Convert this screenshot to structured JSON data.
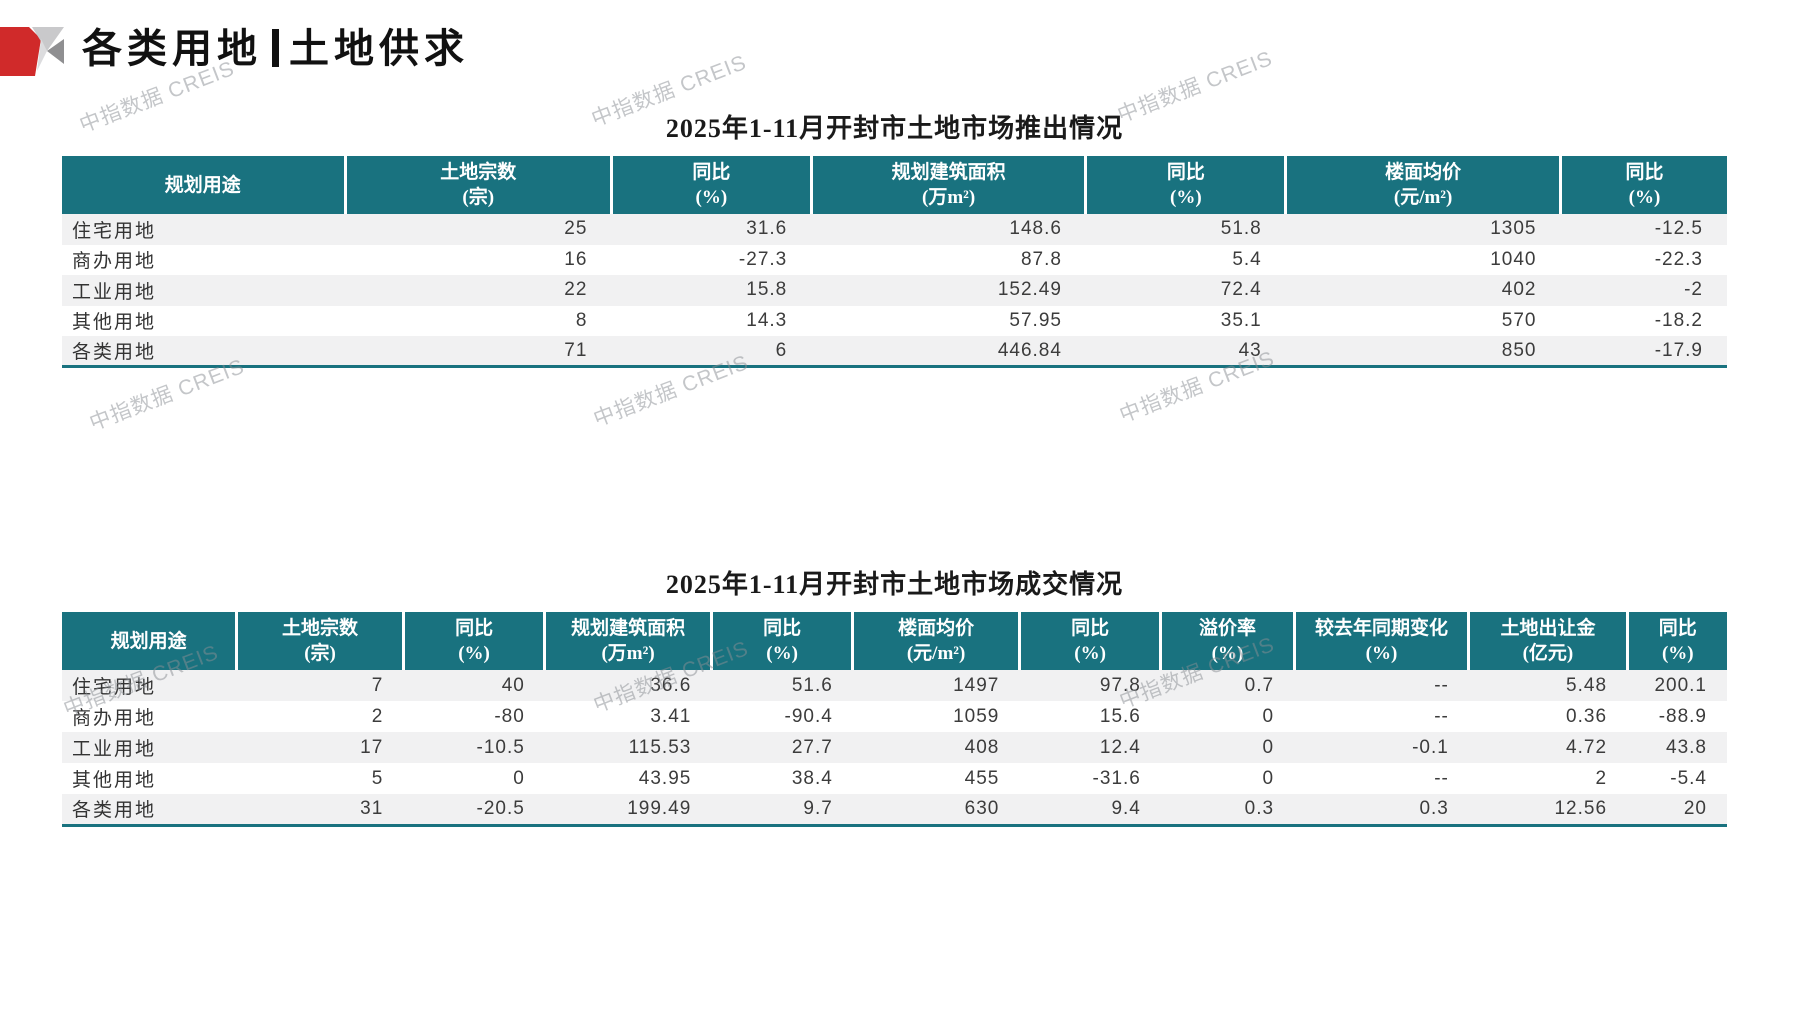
{
  "page": {
    "title_left": "各类用地",
    "title_right": "土地供求"
  },
  "watermark": {
    "text": "中指数据 CREIS"
  },
  "colors": {
    "header_teal": "#19727f",
    "logo_red": "#d02a2a",
    "stripe_gray": "#f1f1f2"
  },
  "tables": [
    {
      "title": "2025年1-11月开封市土地市场推出情况",
      "columns": [
        {
          "label": "规划用途",
          "unit": ""
        },
        {
          "label": "土地宗数",
          "unit": "(宗)"
        },
        {
          "label": "同比",
          "unit": "(%)"
        },
        {
          "label": "规划建筑面积",
          "unit": "(万m²)"
        },
        {
          "label": "同比",
          "unit": "(%)"
        },
        {
          "label": "楼面均价",
          "unit": "(元/m²)"
        },
        {
          "label": "同比",
          "unit": "(%)"
        }
      ],
      "rows": [
        [
          "住宅用地",
          "25",
          "31.6",
          "148.6",
          "51.8",
          "1305",
          "-12.5"
        ],
        [
          "商办用地",
          "16",
          "-27.3",
          "87.8",
          "5.4",
          "1040",
          "-22.3"
        ],
        [
          "工业用地",
          "22",
          "15.8",
          "152.49",
          "72.4",
          "402",
          "-2"
        ],
        [
          "其他用地",
          "8",
          "14.3",
          "57.95",
          "35.1",
          "570",
          "-18.2"
        ],
        [
          "各类用地",
          "71",
          "6",
          "446.84",
          "43",
          "850",
          "-17.9"
        ]
      ]
    },
    {
      "title": "2025年1-11月开封市土地市场成交情况",
      "columns": [
        {
          "label": "规划用途",
          "unit": ""
        },
        {
          "label": "土地宗数",
          "unit": "(宗)"
        },
        {
          "label": "同比",
          "unit": "(%)"
        },
        {
          "label": "规划建筑面积",
          "unit": "(万m²)"
        },
        {
          "label": "同比",
          "unit": "(%)"
        },
        {
          "label": "楼面均价",
          "unit": "(元/m²)"
        },
        {
          "label": "同比",
          "unit": "(%)"
        },
        {
          "label": "溢价率",
          "unit": "(%)"
        },
        {
          "label": "较去年同期变化",
          "unit": "(%)"
        },
        {
          "label": "土地出让金",
          "unit": "(亿元)"
        },
        {
          "label": "同比",
          "unit": "(%)"
        }
      ],
      "rows": [
        [
          "住宅用地",
          "7",
          "40",
          "36.6",
          "51.6",
          "1497",
          "97.8",
          "0.7",
          "--",
          "5.48",
          "200.1"
        ],
        [
          "商办用地",
          "2",
          "-80",
          "3.41",
          "-90.4",
          "1059",
          "15.6",
          "0",
          "--",
          "0.36",
          "-88.9"
        ],
        [
          "工业用地",
          "17",
          "-10.5",
          "115.53",
          "27.7",
          "408",
          "12.4",
          "0",
          "-0.1",
          "4.72",
          "43.8"
        ],
        [
          "其他用地",
          "5",
          "0",
          "43.95",
          "38.4",
          "455",
          "-31.6",
          "0",
          "--",
          "2",
          "-5.4"
        ],
        [
          "各类用地",
          "31",
          "-20.5",
          "199.49",
          "9.7",
          "630",
          "9.4",
          "0.3",
          "0.3",
          "12.56",
          "20"
        ]
      ]
    }
  ]
}
